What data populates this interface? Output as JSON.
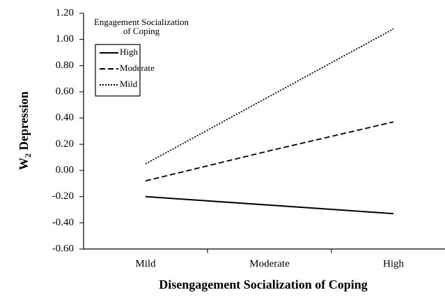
{
  "chart_data": {
    "type": "line",
    "y_label": {
      "main": "W",
      "sub": "2",
      "rest": " Depression"
    },
    "x_label": "Disengagement Socialization of Coping",
    "legend_title": [
      "Engagement Socialization",
      "of Coping"
    ],
    "categories": [
      "Mild",
      "Moderate",
      "High"
    ],
    "series": [
      {
        "name": "High",
        "color": "#000000",
        "dash": "solid",
        "values": [
          -0.2,
          -0.265,
          -0.33
        ]
      },
      {
        "name": "Moderate",
        "color": "#000000",
        "dash": "dashed",
        "values": [
          -0.08,
          0.15,
          0.37
        ]
      },
      {
        "name": "Mild",
        "color": "#000000",
        "dash": "dotted",
        "values": [
          0.05,
          0.565,
          1.08
        ]
      }
    ],
    "ylim": [
      -0.6,
      1.2
    ],
    "yticks": [
      {
        "value": -0.6,
        "label": "-0.60"
      },
      {
        "value": -0.4,
        "label": "-0.40"
      },
      {
        "value": -0.2,
        "label": "-0.20"
      },
      {
        "value": 0,
        "label": "0.00"
      },
      {
        "value": 0.2,
        "label": "0.20"
      },
      {
        "value": 0.4,
        "label": "0.40"
      },
      {
        "value": 0.6,
        "label": "0.60"
      },
      {
        "value": 0.8,
        "label": "0.80"
      },
      {
        "value": 1.0,
        "label": "1.00"
      },
      {
        "value": 1.2,
        "label": "1.20"
      }
    ],
    "grid": false
  }
}
